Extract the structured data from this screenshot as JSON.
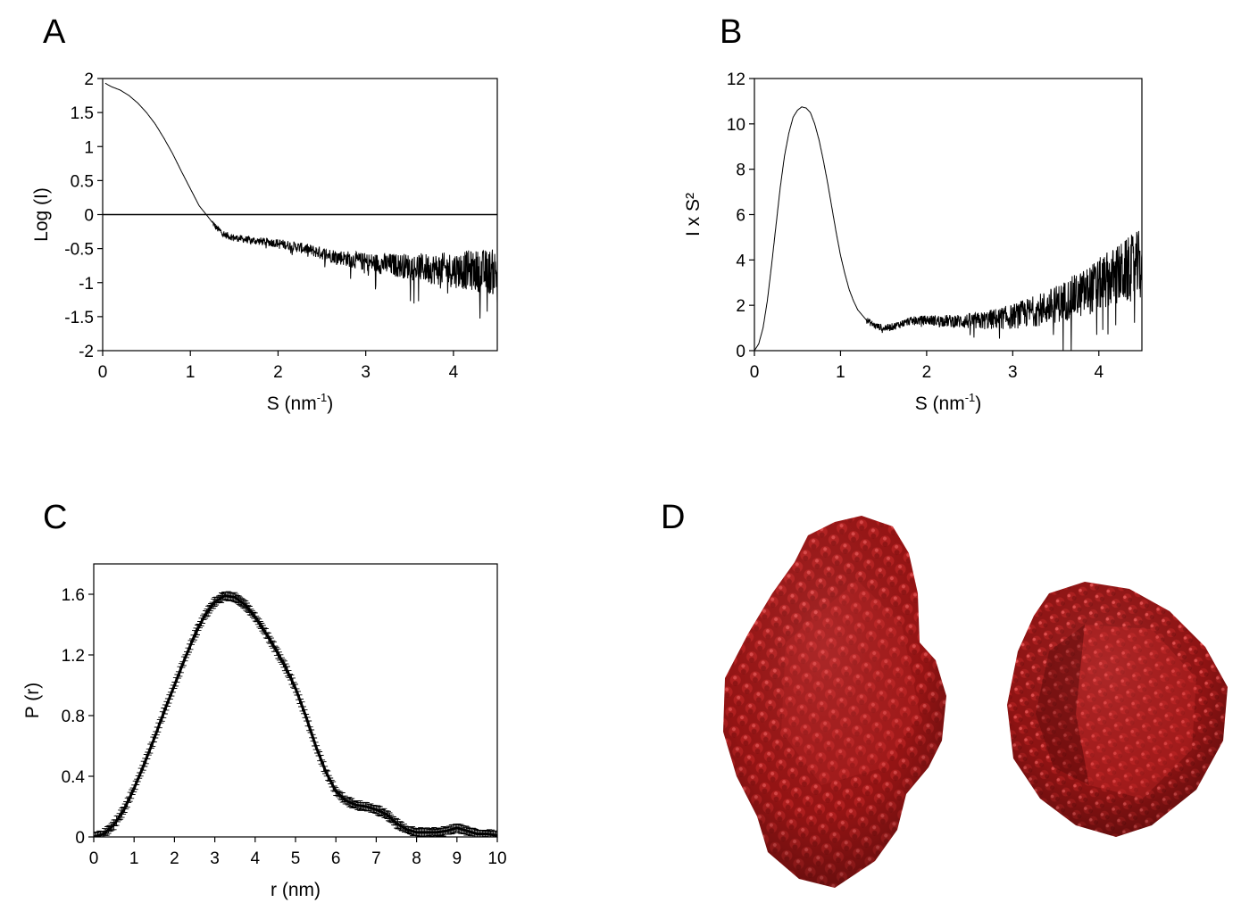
{
  "panels": {
    "A": {
      "letter": "A"
    },
    "B": {
      "letter": "B"
    },
    "C": {
      "letter": "C"
    },
    "D": {
      "letter": "D"
    }
  },
  "chart_data": [
    {
      "panel": "A",
      "type": "line",
      "xlabel_main": "S (nm",
      "xlabel_sup": "-1",
      "xlabel_end": ")",
      "ylabel": "Log (I)",
      "xlim": [
        0,
        4.5
      ],
      "ylim": [
        -2,
        2
      ],
      "xticks": [
        0,
        1,
        2,
        3,
        4
      ],
      "yticks": [
        -2,
        -1.5,
        -1,
        -0.5,
        0,
        0.5,
        1,
        1.5,
        2
      ],
      "ytick_labels": [
        "-2",
        "-1.5",
        "-1",
        "-0.5",
        "0",
        "0.5",
        "1",
        "1.5",
        "2"
      ],
      "reference_line_y": 0,
      "grid": false,
      "series": [
        {
          "x": [
            0.03,
            0.1,
            0.2,
            0.3,
            0.4,
            0.5,
            0.6,
            0.7,
            0.8,
            0.9,
            1.0,
            1.1,
            1.2,
            1.3,
            1.4,
            1.5,
            1.7,
            2.0,
            2.3,
            2.6,
            3.0,
            3.4,
            3.8,
            4.2,
            4.5
          ],
          "y": [
            1.93,
            1.88,
            1.83,
            1.75,
            1.64,
            1.5,
            1.33,
            1.12,
            0.89,
            0.63,
            0.38,
            0.13,
            -0.03,
            -0.2,
            -0.3,
            -0.34,
            -0.38,
            -0.42,
            -0.5,
            -0.6,
            -0.7,
            -0.75,
            -0.8,
            -0.82,
            -0.85
          ]
        }
      ],
      "noise_start": 1.25,
      "noise_amplitude": [
        0.05,
        0.35
      ]
    },
    {
      "panel": "B",
      "type": "line",
      "xlabel_main": "S (nm",
      "xlabel_sup": "-1",
      "xlabel_end": ")",
      "ylabel": "I x S²",
      "xlim": [
        0,
        4.5
      ],
      "ylim": [
        0,
        12
      ],
      "xticks": [
        0,
        1,
        2,
        3,
        4
      ],
      "yticks": [
        0,
        2,
        4,
        6,
        8,
        10,
        12
      ],
      "grid": false,
      "series": [
        {
          "x": [
            0,
            0.05,
            0.1,
            0.15,
            0.2,
            0.25,
            0.3,
            0.35,
            0.4,
            0.45,
            0.5,
            0.55,
            0.6,
            0.65,
            0.7,
            0.75,
            0.8,
            0.85,
            0.9,
            0.95,
            1.0,
            1.05,
            1.1,
            1.15,
            1.2,
            1.3,
            1.4,
            1.5,
            1.6,
            1.8,
            2.0,
            2.3,
            2.6,
            3.0,
            3.4,
            3.8,
            4.2,
            4.5
          ],
          "y": [
            0,
            0.3,
            1.0,
            2.2,
            3.8,
            5.5,
            7.2,
            8.6,
            9.6,
            10.3,
            10.6,
            10.75,
            10.7,
            10.5,
            10.0,
            9.3,
            8.4,
            7.4,
            6.3,
            5.2,
            4.2,
            3.4,
            2.7,
            2.2,
            1.8,
            1.35,
            1.1,
            1.0,
            1.05,
            1.3,
            1.35,
            1.3,
            1.3,
            1.5,
            1.9,
            2.5,
            3.3,
            3.8
          ]
        }
      ],
      "noise_start": 1.3,
      "noise_amplitude": [
        0.15,
        1.6
      ]
    },
    {
      "panel": "C",
      "type": "line",
      "xlabel_main": "r (nm)",
      "ylabel": "P (r)",
      "xlim": [
        0,
        10
      ],
      "ylim": [
        0,
        1.8
      ],
      "xticks": [
        0,
        1,
        2,
        3,
        4,
        5,
        6,
        7,
        8,
        9,
        10
      ],
      "yticks": [
        0,
        0.4,
        0.8,
        1.2,
        1.6
      ],
      "ytick_labels": [
        "0",
        "0.4",
        "0.8",
        "1.2",
        "1.6"
      ],
      "grid": false,
      "error_bars": true,
      "series": [
        {
          "x": [
            0,
            0.25,
            0.5,
            0.75,
            1.0,
            1.25,
            1.5,
            1.75,
            2.0,
            2.25,
            2.5,
            2.75,
            3.0,
            3.25,
            3.5,
            3.75,
            4.0,
            4.25,
            4.5,
            4.75,
            5.0,
            5.25,
            5.5,
            5.75,
            6.0,
            6.25,
            6.5,
            6.75,
            7.0,
            7.25,
            7.5,
            7.75,
            8.0,
            8.25,
            8.5,
            8.75,
            9.0,
            9.25,
            9.5,
            9.75,
            10.0
          ],
          "y": [
            0,
            0.02,
            0.08,
            0.18,
            0.32,
            0.48,
            0.65,
            0.83,
            1.0,
            1.17,
            1.33,
            1.46,
            1.55,
            1.59,
            1.58,
            1.53,
            1.45,
            1.35,
            1.24,
            1.12,
            0.98,
            0.8,
            0.6,
            0.43,
            0.3,
            0.24,
            0.21,
            0.2,
            0.18,
            0.15,
            0.09,
            0.05,
            0.03,
            0.03,
            0.03,
            0.04,
            0.06,
            0.04,
            0.02,
            0.02,
            0.01
          ]
        }
      ]
    }
  ],
  "model_colors": {
    "base": "#8e1212",
    "light": "#d93636",
    "dark": "#4a0505",
    "highlight": "#ff8a8a"
  }
}
